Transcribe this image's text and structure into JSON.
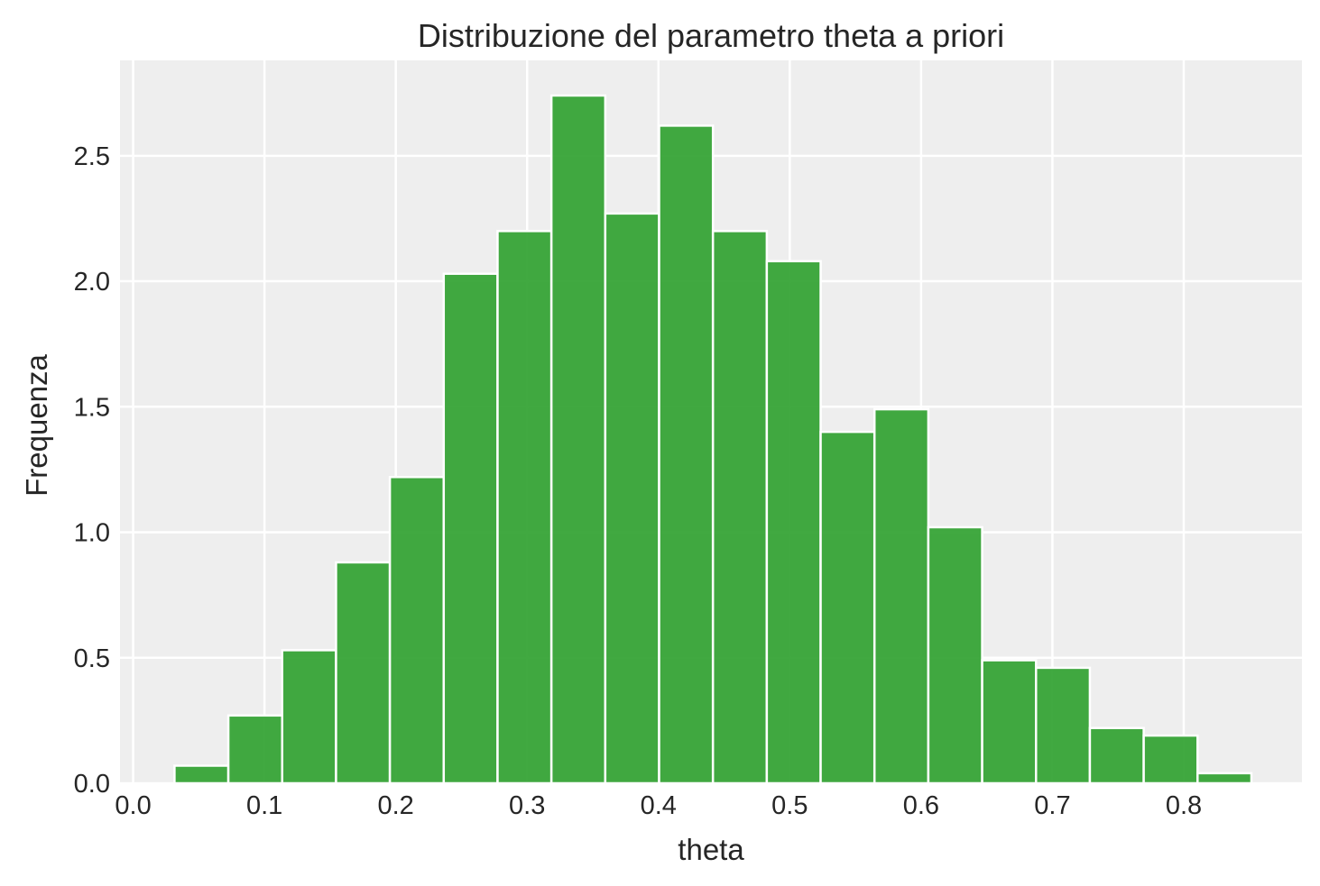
{
  "chart_data": {
    "type": "bar",
    "title": "Distribuzione del parametro theta a priori",
    "xlabel": "theta",
    "ylabel": "Frequenza",
    "xlim": [
      -0.01,
      0.89
    ],
    "ylim": [
      0,
      2.88
    ],
    "xticks": [
      0.0,
      0.1,
      0.2,
      0.3,
      0.4,
      0.5,
      0.6,
      0.7,
      0.8
    ],
    "xtick_labels": [
      "0.0",
      "0.1",
      "0.2",
      "0.3",
      "0.4",
      "0.5",
      "0.6",
      "0.7",
      "0.8"
    ],
    "yticks": [
      0.0,
      0.5,
      1.0,
      1.5,
      2.0,
      2.5
    ],
    "ytick_labels": [
      "0.0",
      "0.5",
      "1.0",
      "1.5",
      "2.0",
      "2.5"
    ],
    "grid": true,
    "colors": {
      "bar": "#2ca02c",
      "background": "#eeeeee",
      "grid": "#ffffff"
    },
    "bins": [
      [
        0.0315,
        0.0725
      ],
      [
        0.0725,
        0.1135
      ],
      [
        0.1135,
        0.1545
      ],
      [
        0.1545,
        0.1955
      ],
      [
        0.1955,
        0.2365
      ],
      [
        0.2365,
        0.2775
      ],
      [
        0.2775,
        0.3185
      ],
      [
        0.3185,
        0.3595
      ],
      [
        0.3595,
        0.4005
      ],
      [
        0.4005,
        0.4415
      ],
      [
        0.4415,
        0.4825
      ],
      [
        0.4825,
        0.5235
      ],
      [
        0.5235,
        0.5645
      ],
      [
        0.5645,
        0.6055
      ],
      [
        0.6055,
        0.6465
      ],
      [
        0.6465,
        0.6875
      ],
      [
        0.6875,
        0.7285
      ],
      [
        0.7285,
        0.7695
      ],
      [
        0.7695,
        0.8105
      ],
      [
        0.8105,
        0.8515
      ]
    ],
    "values": [
      0.07,
      0.27,
      0.53,
      0.88,
      1.22,
      2.03,
      2.2,
      2.74,
      2.27,
      2.62,
      2.2,
      2.08,
      1.4,
      1.49,
      1.02,
      0.49,
      0.46,
      0.22,
      0.19,
      0.04
    ]
  }
}
